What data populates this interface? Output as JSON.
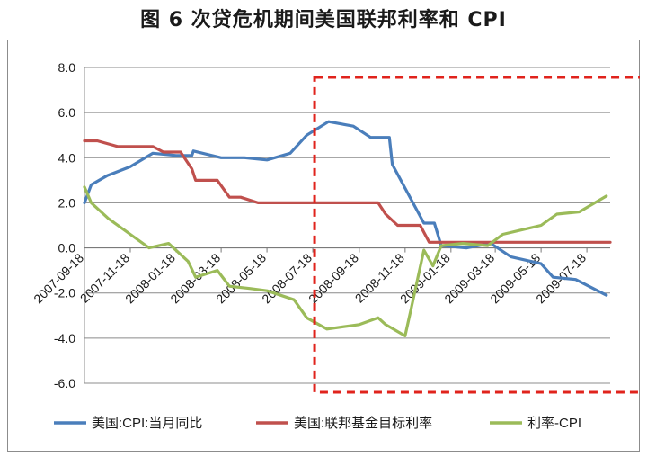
{
  "title": "图 6 次贷危机期间美国联邦利率和 CPI",
  "chart_data": {
    "type": "line",
    "title": "图 6 次贷危机期间美国联邦利率和 CPI",
    "ylim": [
      -6,
      8
    ],
    "yticks": [
      "8.0",
      "6.0",
      "4.0",
      "2.0",
      "0.0",
      "-2.0",
      "-4.0",
      "-6.0"
    ],
    "x_tick_labels": [
      "2007-09-18",
      "2007-11-18",
      "2008-01-18",
      "2008-03-18",
      "2008-05-18",
      "2008-07-18",
      "2008-09-18",
      "2008-11-18",
      "2009-01-18",
      "2009-03-18",
      "2009-05-18",
      "2009-07-18"
    ],
    "x_range": [
      "2007-09-18",
      "2009-08-18"
    ],
    "grid": "horizontal",
    "legend": "bottom",
    "highlight_box": {
      "from": "2008-07-18",
      "to": "2009-08-18",
      "color": "#e0231c",
      "style": "dashed"
    },
    "series": [
      {
        "name": "美国:CPI:当月同比",
        "color": "#4a7ebb",
        "points": [
          [
            "2007-09-18",
            2.0
          ],
          [
            "2007-09-27",
            2.8
          ],
          [
            "2007-10-18",
            3.2
          ],
          [
            "2007-11-18",
            3.6
          ],
          [
            "2007-12-18",
            4.2
          ],
          [
            "2008-01-18",
            4.1
          ],
          [
            "2008-02-08",
            4.1
          ],
          [
            "2008-02-10",
            4.3
          ],
          [
            "2008-03-18",
            4.0
          ],
          [
            "2008-04-18",
            4.0
          ],
          [
            "2008-05-18",
            3.9
          ],
          [
            "2008-06-18",
            4.2
          ],
          [
            "2008-07-10",
            5.0
          ],
          [
            "2008-08-08",
            5.6
          ],
          [
            "2008-09-10",
            5.4
          ],
          [
            "2008-10-03",
            4.9
          ],
          [
            "2008-10-28",
            4.9
          ],
          [
            "2008-11-01",
            3.7
          ],
          [
            "2008-12-13",
            1.1
          ],
          [
            "2008-12-27",
            1.1
          ],
          [
            "2009-01-05",
            0.1
          ],
          [
            "2009-02-08",
            0.0
          ],
          [
            "2009-03-12",
            0.2
          ],
          [
            "2009-04-08",
            -0.4
          ],
          [
            "2009-05-18",
            -0.7
          ],
          [
            "2009-06-03",
            -1.3
          ],
          [
            "2009-07-03",
            -1.4
          ],
          [
            "2009-08-13",
            -2.1
          ]
        ]
      },
      {
        "name": "美国:联邦基金目标利率",
        "color": "#c0504d",
        "points": [
          [
            "2007-09-18",
            4.75
          ],
          [
            "2007-10-05",
            4.75
          ],
          [
            "2007-11-01",
            4.5
          ],
          [
            "2007-12-18",
            4.5
          ],
          [
            "2008-01-01",
            4.25
          ],
          [
            "2008-01-24",
            4.25
          ],
          [
            "2008-02-08",
            3.5
          ],
          [
            "2008-02-13",
            3.0
          ],
          [
            "2008-03-13",
            3.0
          ],
          [
            "2008-03-29",
            2.25
          ],
          [
            "2008-04-13",
            2.25
          ],
          [
            "2008-05-06",
            2.0
          ],
          [
            "2008-07-05",
            2.0
          ],
          [
            "2008-10-13",
            2.0
          ],
          [
            "2008-10-23",
            1.5
          ],
          [
            "2008-11-08",
            1.0
          ],
          [
            "2008-12-08",
            1.0
          ],
          [
            "2008-12-20",
            0.25
          ],
          [
            "2009-08-18",
            0.25
          ]
        ]
      },
      {
        "name": "利率-CPI",
        "color": "#9bbb59",
        "points": [
          [
            "2007-09-18",
            2.7
          ],
          [
            "2007-09-27",
            2.0
          ],
          [
            "2007-10-20",
            1.3
          ],
          [
            "2007-11-18",
            0.6
          ],
          [
            "2007-12-13",
            0.0
          ],
          [
            "2008-01-08",
            0.2
          ],
          [
            "2008-02-03",
            -0.6
          ],
          [
            "2008-02-13",
            -1.3
          ],
          [
            "2008-03-13",
            -1.0
          ],
          [
            "2008-03-29",
            -1.7
          ],
          [
            "2008-04-25",
            -1.8
          ],
          [
            "2008-05-18",
            -1.9
          ],
          [
            "2008-06-23",
            -2.3
          ],
          [
            "2008-07-10",
            -3.1
          ],
          [
            "2008-08-06",
            -3.6
          ],
          [
            "2008-09-18",
            -3.4
          ],
          [
            "2008-10-13",
            -3.1
          ],
          [
            "2008-10-23",
            -3.4
          ],
          [
            "2008-11-18",
            -3.9
          ],
          [
            "2008-11-26",
            -2.7
          ],
          [
            "2008-12-13",
            -0.1
          ],
          [
            "2008-12-25",
            -0.8
          ],
          [
            "2009-01-05",
            0.1
          ],
          [
            "2009-02-03",
            0.2
          ],
          [
            "2009-03-08",
            0.1
          ],
          [
            "2009-03-28",
            0.6
          ],
          [
            "2009-05-18",
            1.0
          ],
          [
            "2009-06-08",
            1.5
          ],
          [
            "2009-07-08",
            1.6
          ],
          [
            "2009-08-13",
            2.3
          ]
        ]
      }
    ]
  }
}
